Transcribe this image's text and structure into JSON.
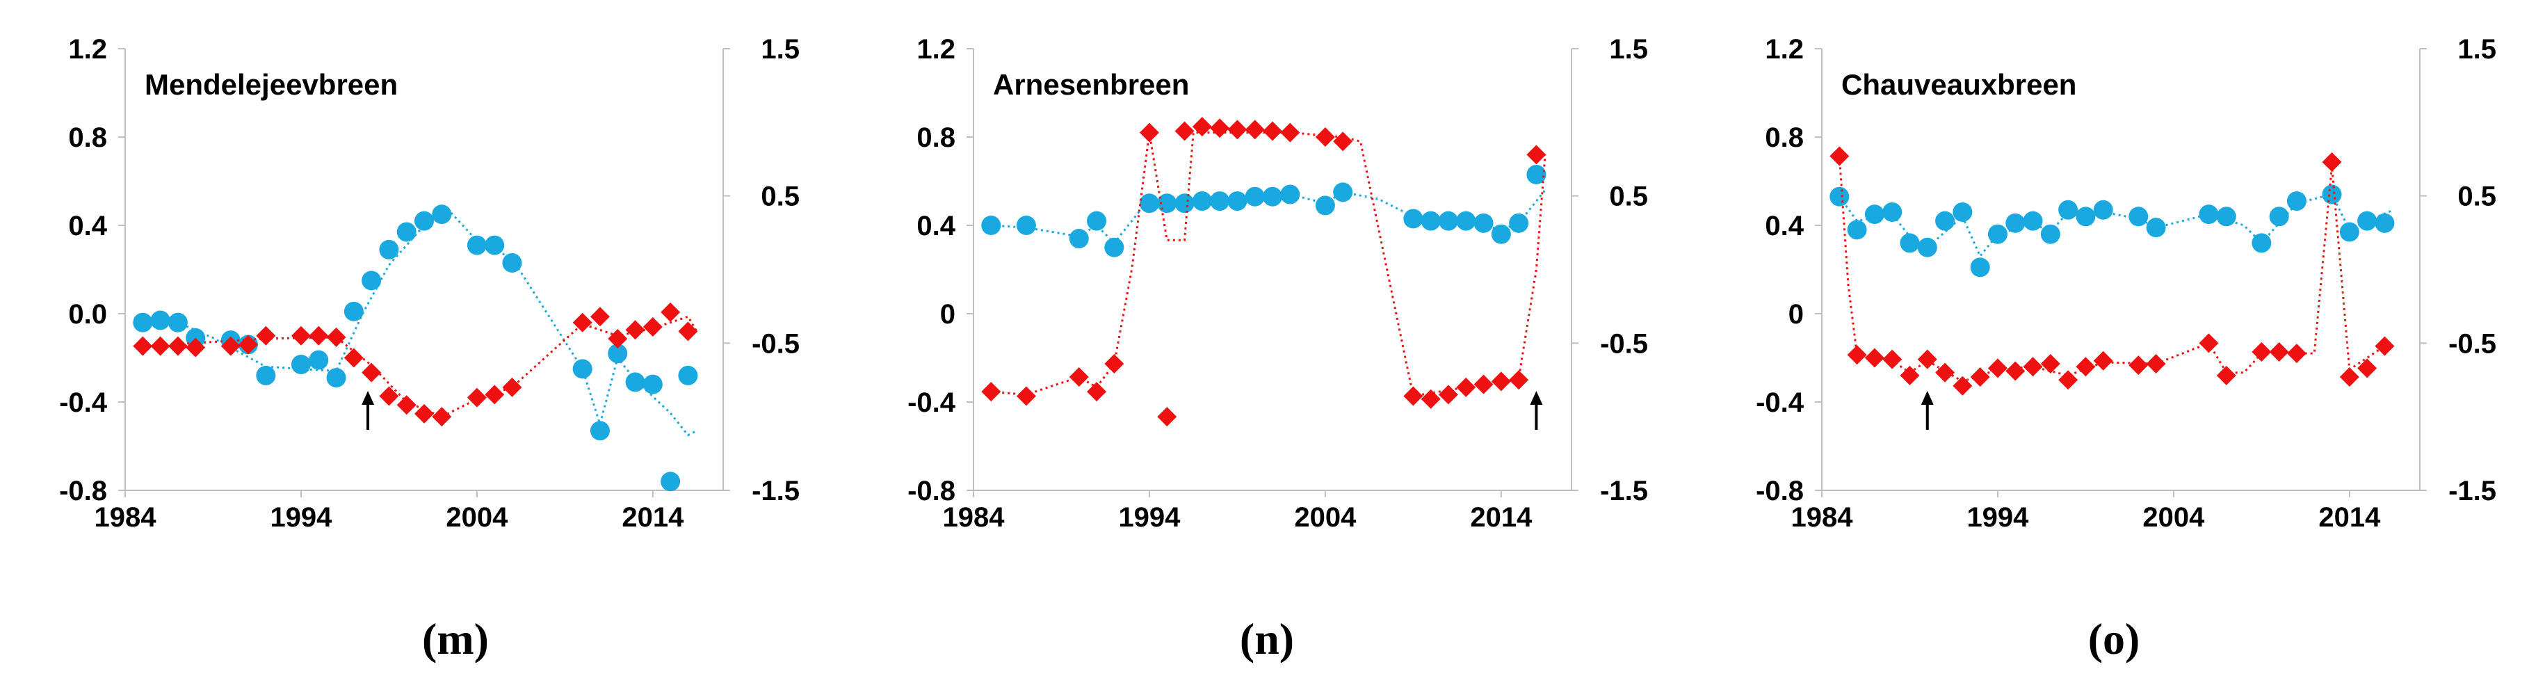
{
  "colors": {
    "blue": "#1aa8e0",
    "red": "#ef1111",
    "axis": "#bfbfbf"
  },
  "chart_data": [
    {
      "type": "scatter",
      "title": "Mendelejeevbreen",
      "caption": "(m)",
      "xlim": [
        1984,
        2018
      ],
      "x_ticks": [
        1984,
        1994,
        2004,
        2014
      ],
      "ylim_left": [
        -0.8,
        1.2
      ],
      "left_ticks": [
        "1.2",
        "0.8",
        "0.4",
        "0.0",
        "-0.4",
        "-0.8"
      ],
      "ylim_right": [
        -1.5,
        1.5
      ],
      "right_ticks": [
        "1.5",
        "0.5",
        "-0.5",
        "-1.5"
      ],
      "marker_year": 1997.8,
      "series": [
        {
          "name": "blue-circles",
          "axis": "left",
          "marker": "circle",
          "color": "#1aa8e0",
          "x": [
            1985,
            1986,
            1987,
            1988,
            1990,
            1991,
            1992,
            1994,
            1995,
            1996,
            1997,
            1998,
            1999,
            2000,
            2001,
            2002,
            2004,
            2005,
            2006,
            2010,
            2011,
            2012,
            2013,
            2014,
            2015,
            2016
          ],
          "y": [
            -0.04,
            -0.03,
            -0.04,
            -0.11,
            -0.12,
            -0.14,
            -0.28,
            -0.23,
            -0.21,
            -0.29,
            0.01,
            0.15,
            0.29,
            0.37,
            0.42,
            0.45,
            0.31,
            0.31,
            0.23,
            -0.25,
            -0.53,
            -0.18,
            -0.31,
            -0.32,
            -0.76,
            -0.28
          ],
          "trend": [
            [
              1985,
              -0.04
            ],
            [
              1987,
              -0.04
            ],
            [
              1989,
              -0.11
            ],
            [
              1992,
              -0.24
            ],
            [
              1996,
              -0.26
            ],
            [
              1997.5,
              0.0
            ],
            [
              1999,
              0.22
            ],
            [
              2001,
              0.4
            ],
            [
              2002.5,
              0.46
            ],
            [
              2004,
              0.33
            ],
            [
              2006,
              0.25
            ],
            [
              2008,
              0.0
            ],
            [
              2010,
              -0.25
            ],
            [
              2011,
              -0.5
            ],
            [
              2012,
              -0.2
            ],
            [
              2013,
              -0.3
            ],
            [
              2015,
              -0.45
            ],
            [
              2016,
              -0.55
            ],
            [
              2016.5,
              -0.53
            ]
          ]
        },
        {
          "name": "red-diamonds",
          "axis": "right",
          "marker": "diamond",
          "color": "#ef1111",
          "x": [
            1985,
            1986,
            1987,
            1988,
            1990,
            1991,
            1992,
            1994,
            1995,
            1996,
            1997,
            1998,
            1999,
            2000,
            2001,
            2002,
            2004,
            2005,
            2006,
            2010,
            2011,
            2012,
            2013,
            2014,
            2015,
            2016
          ],
          "y": [
            -0.52,
            -0.52,
            -0.52,
            -0.53,
            -0.52,
            -0.51,
            -0.45,
            -0.45,
            -0.45,
            -0.46,
            -0.6,
            -0.7,
            -0.86,
            -0.92,
            -0.98,
            -1.0,
            -0.87,
            -0.85,
            -0.8,
            -0.36,
            -0.32,
            -0.47,
            -0.41,
            -0.39,
            -0.29,
            -0.42
          ],
          "trend": [
            [
              1985,
              -0.52
            ],
            [
              1992,
              -0.47
            ],
            [
              1996,
              -0.46
            ],
            [
              1998,
              -0.65
            ],
            [
              2000,
              -0.9
            ],
            [
              2002,
              -1.0
            ],
            [
              2004,
              -0.88
            ],
            [
              2006,
              -0.8
            ],
            [
              2010,
              -0.37
            ],
            [
              2012,
              -0.45
            ],
            [
              2014,
              -0.4
            ],
            [
              2016,
              -0.32
            ],
            [
              2016.5,
              -0.42
            ]
          ]
        }
      ]
    },
    {
      "type": "scatter",
      "title": "Arnesenbreen",
      "caption": "(n)",
      "xlim": [
        1984,
        2018
      ],
      "x_ticks": [
        1984,
        1994,
        2004,
        2014
      ],
      "ylim_left": [
        -0.8,
        1.2
      ],
      "left_ticks": [
        "1.2",
        "0.8",
        "0.4",
        "0",
        "-0.4",
        "-0.8"
      ],
      "ylim_right": [
        -1.5,
        1.5
      ],
      "right_ticks": [
        "1.5",
        "0.5",
        "-0.5",
        "-1.5"
      ],
      "marker_year": 2016,
      "series": [
        {
          "name": "blue-circles",
          "axis": "left",
          "marker": "circle",
          "color": "#1aa8e0",
          "x": [
            1985,
            1987,
            1990,
            1991,
            1992,
            1994,
            1995,
            1996,
            1997,
            1998,
            1999,
            2000,
            2001,
            2002,
            2004,
            2005,
            2009,
            2010,
            2011,
            2012,
            2013,
            2014,
            2015,
            2016
          ],
          "y": [
            0.4,
            0.4,
            0.34,
            0.42,
            0.3,
            0.5,
            0.5,
            0.5,
            0.51,
            0.51,
            0.51,
            0.53,
            0.53,
            0.54,
            0.49,
            0.55,
            0.43,
            0.42,
            0.42,
            0.42,
            0.41,
            0.36,
            0.41,
            0.63
          ],
          "trend": [
            [
              1985,
              0.4
            ],
            [
              1987,
              0.39
            ],
            [
              1990,
              0.35
            ],
            [
              1991,
              0.4
            ],
            [
              1992,
              0.32
            ],
            [
              1993,
              0.42
            ],
            [
              1994,
              0.52
            ],
            [
              1996,
              0.5
            ],
            [
              1998,
              0.51
            ],
            [
              2000,
              0.52
            ],
            [
              2002,
              0.54
            ],
            [
              2004,
              0.5
            ],
            [
              2005,
              0.55
            ],
            [
              2007,
              0.52
            ],
            [
              2009,
              0.44
            ],
            [
              2012,
              0.42
            ],
            [
              2014,
              0.38
            ],
            [
              2015,
              0.41
            ],
            [
              2016.5,
              0.56
            ]
          ]
        },
        {
          "name": "red-diamonds",
          "axis": "right",
          "marker": "diamond",
          "color": "#ef1111",
          "x": [
            1985,
            1987,
            1990,
            1991,
            1992,
            1994,
            1995,
            1996,
            1997,
            1998,
            1999,
            2000,
            2001,
            2002,
            2004,
            2005,
            2009,
            2010,
            2011,
            2012,
            2013,
            2014,
            2015,
            2016
          ],
          "y": [
            -0.83,
            -0.86,
            -0.73,
            -0.83,
            -0.64,
            0.93,
            -1.0,
            0.94,
            0.97,
            0.96,
            0.95,
            0.95,
            0.94,
            0.93,
            0.9,
            0.87,
            -0.86,
            -0.88,
            -0.85,
            -0.8,
            -0.78,
            -0.76,
            -0.75,
            0.78
          ],
          "trend": [
            [
              1985,
              -0.83
            ],
            [
              1987,
              -0.85
            ],
            [
              1990,
              -0.73
            ],
            [
              1991,
              -0.8
            ],
            [
              1992,
              -0.64
            ],
            [
              1993,
              0.0
            ],
            [
              1994,
              0.93
            ],
            [
              1995,
              0.2
            ],
            [
              1996,
              0.2
            ],
            [
              1996.5,
              0.93
            ],
            [
              2002,
              0.93
            ],
            [
              2005,
              0.9
            ],
            [
              2006,
              0.87
            ],
            [
              2009,
              -0.86
            ],
            [
              2012,
              -0.8
            ],
            [
              2014,
              -0.76
            ],
            [
              2015,
              -0.74
            ],
            [
              2016,
              0.0
            ],
            [
              2016.5,
              0.78
            ]
          ]
        }
      ]
    },
    {
      "type": "scatter",
      "title": "Chauveauxbreen",
      "caption": "(o)",
      "xlim": [
        1984,
        2018
      ],
      "x_ticks": [
        1984,
        1994,
        2004,
        2014
      ],
      "ylim_left": [
        -0.8,
        1.2
      ],
      "left_ticks": [
        "1.2",
        "0.8",
        "0.4",
        "0",
        "-0.4",
        "-0.8"
      ],
      "ylim_right": [
        -1.5,
        1.5
      ],
      "right_ticks": [
        "1.5",
        "0.5",
        "-0.5",
        "-1.5"
      ],
      "marker_year": 1990,
      "series": [
        {
          "name": "blue-circles",
          "axis": "left",
          "marker": "circle",
          "color": "#1aa8e0",
          "x": [
            1985,
            1986,
            1987,
            1988,
            1989,
            1990,
            1991,
            1992,
            1993,
            1994,
            1995,
            1996,
            1997,
            1998,
            1999,
            2000,
            2002,
            2003,
            2006,
            2007,
            2009,
            2010,
            2011,
            2013,
            2014,
            2015,
            2016
          ],
          "y": [
            0.53,
            0.38,
            0.45,
            0.46,
            0.32,
            0.3,
            0.42,
            0.46,
            0.21,
            0.36,
            0.41,
            0.42,
            0.36,
            0.47,
            0.44,
            0.47,
            0.44,
            0.39,
            0.45,
            0.44,
            0.32,
            0.44,
            0.51,
            0.54,
            0.37,
            0.42,
            0.41
          ],
          "trend": [
            [
              1985,
              0.53
            ],
            [
              1986,
              0.42
            ],
            [
              1988,
              0.45
            ],
            [
              1989,
              0.35
            ],
            [
              1990,
              0.3
            ],
            [
              1992,
              0.44
            ],
            [
              1993,
              0.26
            ],
            [
              1994,
              0.36
            ],
            [
              1996,
              0.41
            ],
            [
              1997,
              0.37
            ],
            [
              1998,
              0.46
            ],
            [
              2000,
              0.46
            ],
            [
              2002,
              0.43
            ],
            [
              2003,
              0.39
            ],
            [
              2006,
              0.45
            ],
            [
              2008,
              0.4
            ],
            [
              2009,
              0.32
            ],
            [
              2011,
              0.5
            ],
            [
              2013,
              0.54
            ],
            [
              2014,
              0.38
            ],
            [
              2015,
              0.42
            ],
            [
              2016.5,
              0.47
            ]
          ]
        },
        {
          "name": "red-diamonds",
          "axis": "right",
          "marker": "diamond",
          "color": "#ef1111",
          "x": [
            1985,
            1986,
            1987,
            1988,
            1989,
            1990,
            1991,
            1992,
            1993,
            1994,
            1995,
            1996,
            1997,
            1998,
            1999,
            2000,
            2002,
            2003,
            2006,
            2007,
            2009,
            2010,
            2011,
            2013,
            2014,
            2015,
            2016
          ],
          "y": [
            0.77,
            -0.58,
            -0.6,
            -0.61,
            -0.72,
            -0.61,
            -0.7,
            -0.79,
            -0.73,
            -0.67,
            -0.69,
            -0.66,
            -0.64,
            -0.75,
            -0.66,
            -0.62,
            -0.65,
            -0.64,
            -0.5,
            -0.72,
            -0.56,
            -0.56,
            -0.57,
            0.73,
            -0.73,
            -0.67,
            -0.52
          ],
          "trend": [
            [
              1985,
              0.77
            ],
            [
              1985.5,
              -0.1
            ],
            [
              1986,
              -0.58
            ],
            [
              1988,
              -0.62
            ],
            [
              1989,
              -0.7
            ],
            [
              1990,
              -0.62
            ],
            [
              1992,
              -0.76
            ],
            [
              1994,
              -0.68
            ],
            [
              1996,
              -0.66
            ],
            [
              1998,
              -0.72
            ],
            [
              2000,
              -0.63
            ],
            [
              2003,
              -0.64
            ],
            [
              2006,
              -0.5
            ],
            [
              2007,
              -0.7
            ],
            [
              2008,
              -0.7
            ],
            [
              2009,
              -0.57
            ],
            [
              2012,
              -0.57
            ],
            [
              2013,
              0.7
            ],
            [
              2014,
              -0.68
            ],
            [
              2015,
              -0.6
            ],
            [
              2016,
              -0.52
            ]
          ]
        }
      ]
    }
  ]
}
